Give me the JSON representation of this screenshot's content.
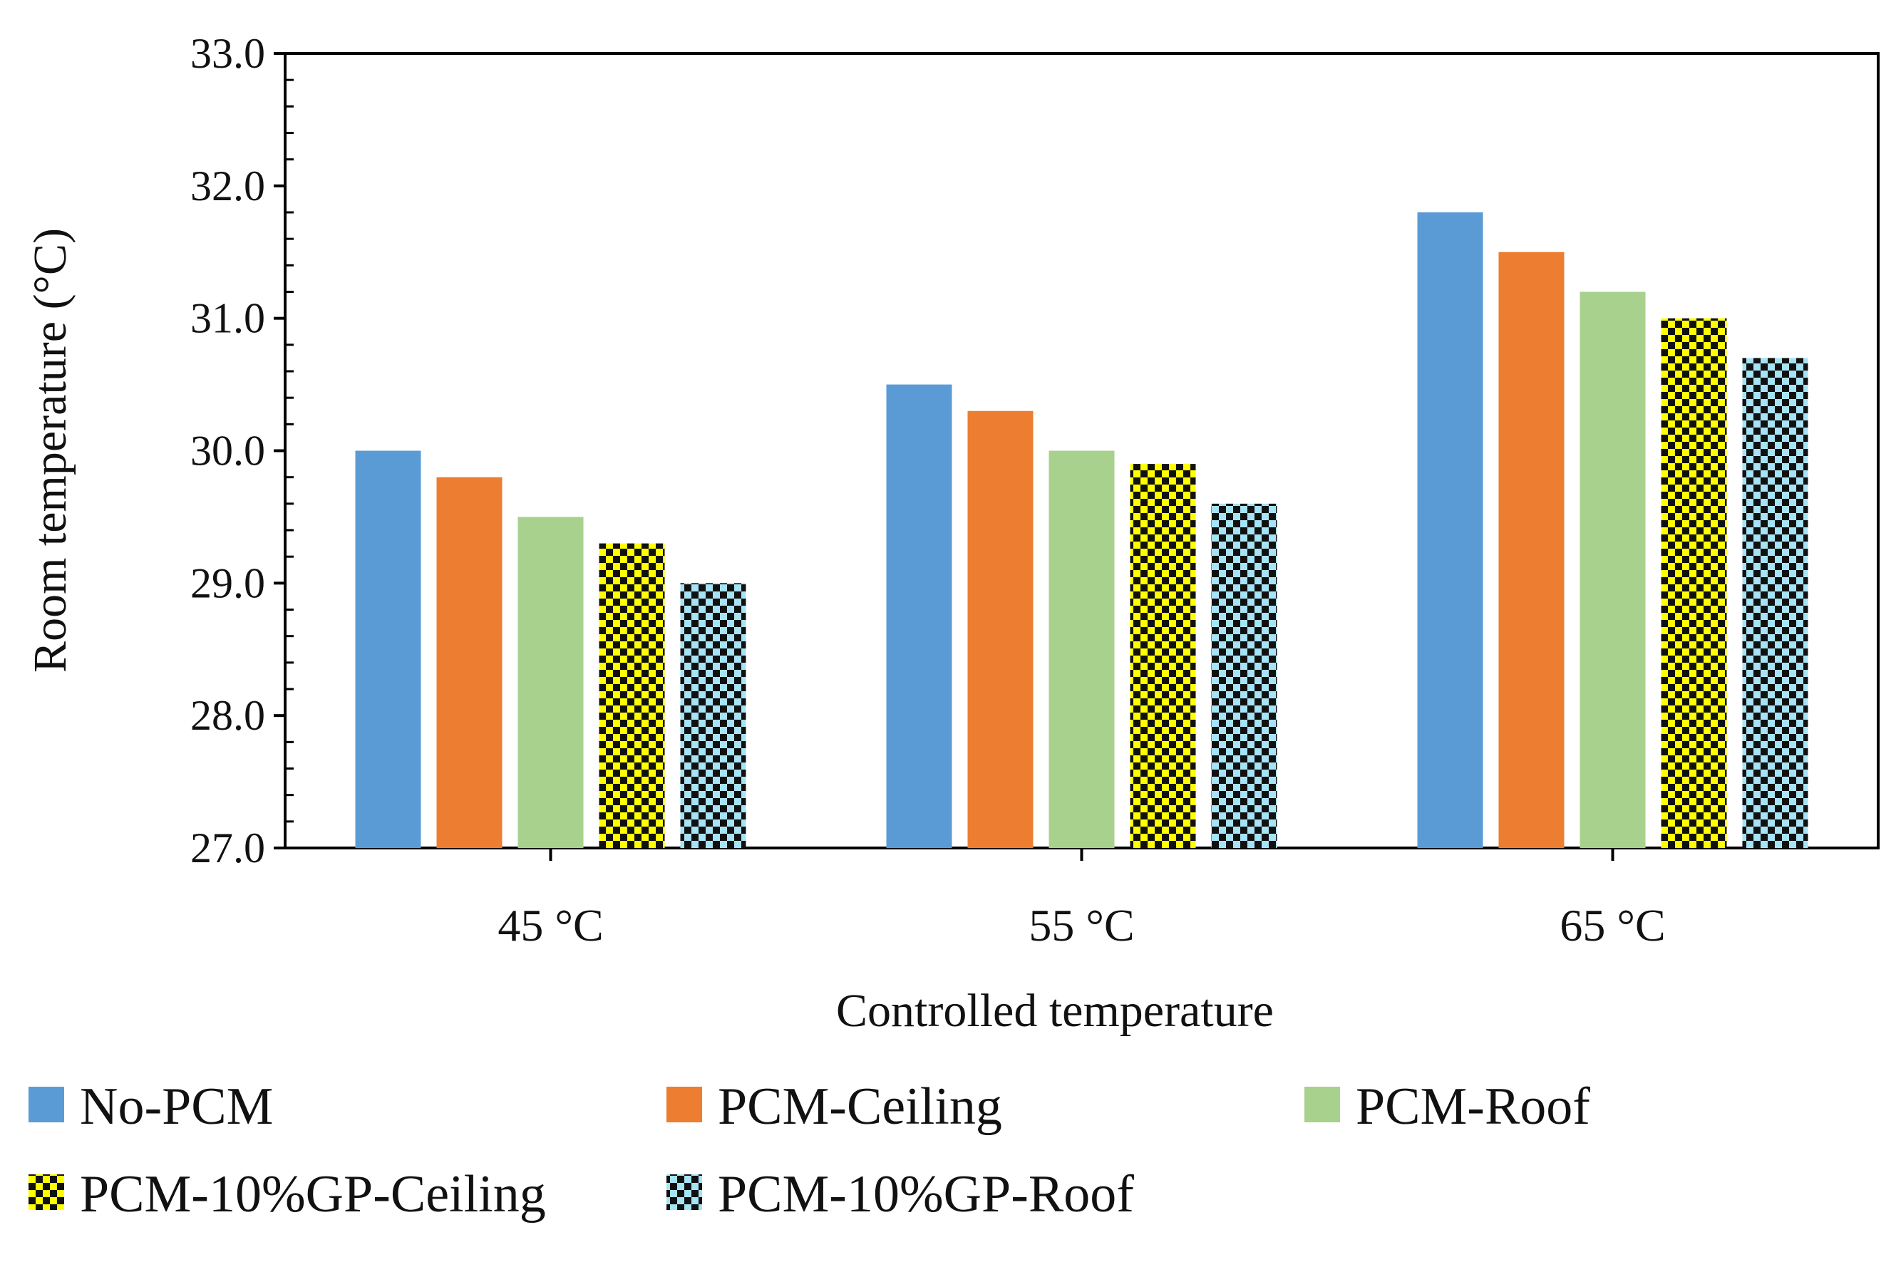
{
  "chart_data": {
    "type": "bar",
    "title": "",
    "xlabel": "Controlled temperature",
    "ylabel": "Room temperature (°C)",
    "ylim": [
      27.0,
      33.0
    ],
    "yticks": [
      "27.0",
      "28.0",
      "29.0",
      "30.0",
      "31.0",
      "32.0",
      "33.0"
    ],
    "categories": [
      "45 °C",
      "55 °C",
      "65 °C"
    ],
    "grid": false,
    "legend_position": "bottom",
    "series": [
      {
        "name": "No-PCM",
        "values": [
          30.0,
          30.5,
          31.8
        ],
        "color": "#5b9bd5",
        "pattern": "solid"
      },
      {
        "name": "PCM-Ceiling",
        "values": [
          29.8,
          30.3,
          31.5
        ],
        "color": "#ed7d31",
        "pattern": "solid"
      },
      {
        "name": "PCM-Roof",
        "values": [
          29.5,
          30.0,
          31.2
        ],
        "color": "#a9d18e",
        "pattern": "solid"
      },
      {
        "name": "PCM-10%GP-Ceiling",
        "values": [
          29.3,
          29.9,
          31.0
        ],
        "color": "#ffff00",
        "pattern": "checker"
      },
      {
        "name": "PCM-10%GP-Roof",
        "values": [
          29.0,
          29.6,
          30.7
        ],
        "color": "#a6e3f5",
        "pattern": "checker"
      }
    ]
  }
}
